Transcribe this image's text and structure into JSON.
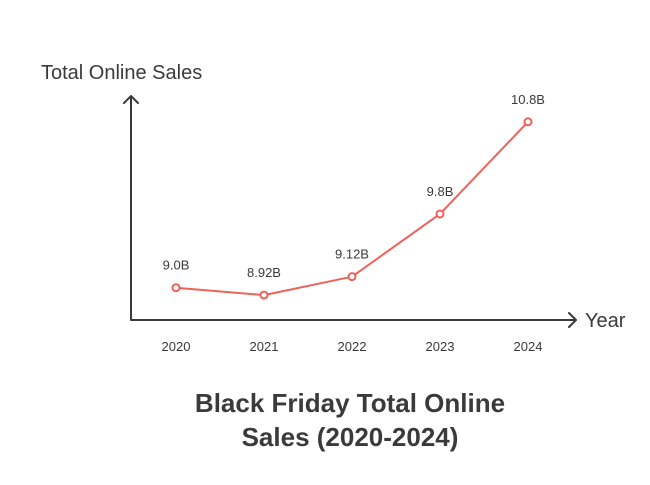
{
  "chart_data": {
    "type": "line",
    "title_lines": [
      "Black Friday Total Online",
      "Sales (2020-2024)"
    ],
    "xlabel": "Year",
    "ylabel": "Total Online Sales",
    "categories": [
      "2020",
      "2021",
      "2022",
      "2023",
      "2024"
    ],
    "series": [
      {
        "values": [
          9.0,
          8.92,
          9.12,
          9.8,
          10.8
        ],
        "labels": [
          "9.0B",
          "8.92B",
          "9.12B",
          "9.8B",
          "10.8B"
        ],
        "color": "#f0615a"
      }
    ],
    "ylim": [
      8.65,
      11.08
    ],
    "grid": false,
    "legend": "none"
  }
}
